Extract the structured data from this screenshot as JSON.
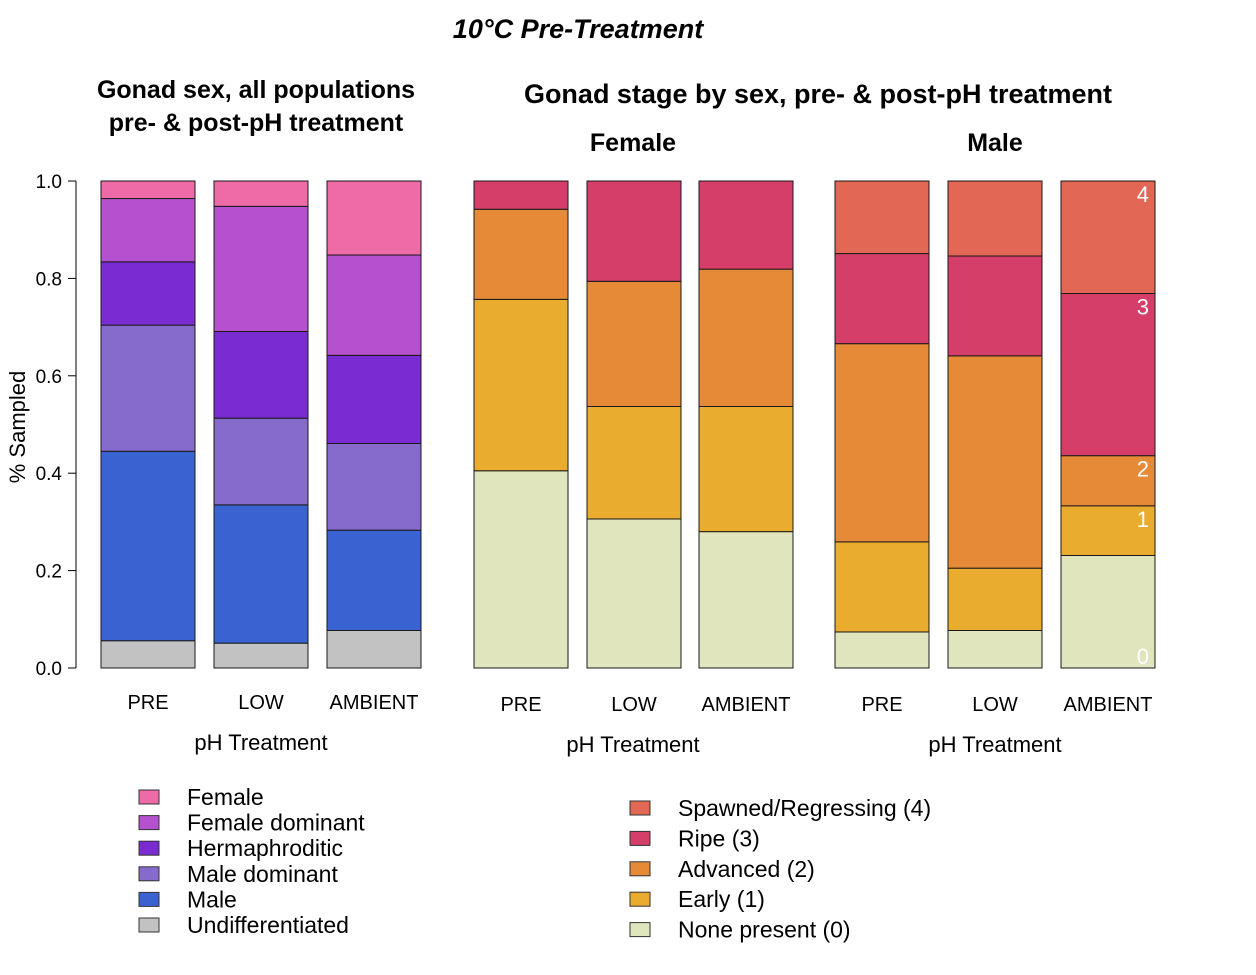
{
  "page_title": "10°C Pre-Treatment",
  "colors": {
    "sex": {
      "Female": "#EE6BA8",
      "Female dominant": "#B551CE",
      "Hermaphroditic": "#7B2BD2",
      "Male dominant": "#876BCC",
      "Male": "#3A62D1",
      "Undifferentiated": "#C2C2C2"
    },
    "stage": {
      "Spawned/Regressing (4)": "#E26755",
      "Ripe (3)": "#D43E68",
      "Advanced (2)": "#E78A37",
      "Early (1)": "#E9AC2E",
      "None present (0)": "#E0E5BE"
    }
  },
  "chart_data": [
    {
      "id": "sex",
      "type": "bar",
      "stacked": true,
      "title": "Gonad sex, all populations",
      "subtitle": "pre- & post-pH treatment",
      "xlabel": "pH Treatment",
      "ylabel": "% Sampled",
      "ylim": [
        0,
        1
      ],
      "yticks": [
        "0.0",
        "0.2",
        "0.4",
        "0.6",
        "0.8",
        "1.0"
      ],
      "categories": [
        "PRE",
        "LOW",
        "AMBIENT"
      ],
      "series": [
        {
          "name": "Undifferentiated",
          "values": [
            0.056,
            0.051,
            0.077
          ]
        },
        {
          "name": "Male",
          "values": [
            0.389,
            0.284,
            0.206
          ]
        },
        {
          "name": "Male dominant",
          "values": [
            0.259,
            0.178,
            0.178
          ]
        },
        {
          "name": "Hermaphroditic",
          "values": [
            0.13,
            0.178,
            0.181
          ]
        },
        {
          "name": "Female dominant",
          "values": [
            0.13,
            0.257,
            0.206
          ]
        },
        {
          "name": "Female",
          "values": [
            0.036,
            0.052,
            0.152
          ]
        }
      ]
    },
    {
      "id": "female",
      "type": "bar",
      "stacked": true,
      "section_title": "Gonad stage by sex, pre- & post-pH treatment",
      "title": "Female",
      "xlabel": "pH Treatment",
      "ylim": [
        0,
        1
      ],
      "categories": [
        "PRE",
        "LOW",
        "AMBIENT"
      ],
      "series": [
        {
          "name": "None present (0)",
          "values": [
            0.405,
            0.306,
            0.28
          ]
        },
        {
          "name": "Early (1)",
          "values": [
            0.352,
            0.231,
            0.257
          ]
        },
        {
          "name": "Advanced (2)",
          "values": [
            0.185,
            0.257,
            0.282
          ]
        },
        {
          "name": "Ripe (3)",
          "values": [
            0.058,
            0.206,
            0.181
          ]
        }
      ]
    },
    {
      "id": "male",
      "type": "bar",
      "stacked": true,
      "title": "Male",
      "xlabel": "pH Treatment",
      "ylim": [
        0,
        1
      ],
      "categories": [
        "PRE",
        "LOW",
        "AMBIENT"
      ],
      "series": [
        {
          "name": "None present (0)",
          "values": [
            0.074,
            0.077,
            0.231
          ]
        },
        {
          "name": "Early (1)",
          "values": [
            0.185,
            0.128,
            0.102
          ]
        },
        {
          "name": "Advanced (2)",
          "values": [
            0.407,
            0.436,
            0.103
          ]
        },
        {
          "name": "Ripe (3)",
          "values": [
            0.185,
            0.205,
            0.333
          ]
        },
        {
          "name": "Spawned/Regressing (4)",
          "values": [
            0.149,
            0.154,
            0.231
          ]
        }
      ],
      "stage_labels": [
        "0",
        "1",
        "2",
        "3",
        "4"
      ]
    }
  ],
  "legends": {
    "sex": [
      "Female",
      "Female dominant",
      "Hermaphroditic",
      "Male dominant",
      "Male",
      "Undifferentiated"
    ],
    "stage": [
      "Spawned/Regressing (4)",
      "Ripe (3)",
      "Advanced (2)",
      "Early (1)",
      "None present (0)"
    ]
  }
}
